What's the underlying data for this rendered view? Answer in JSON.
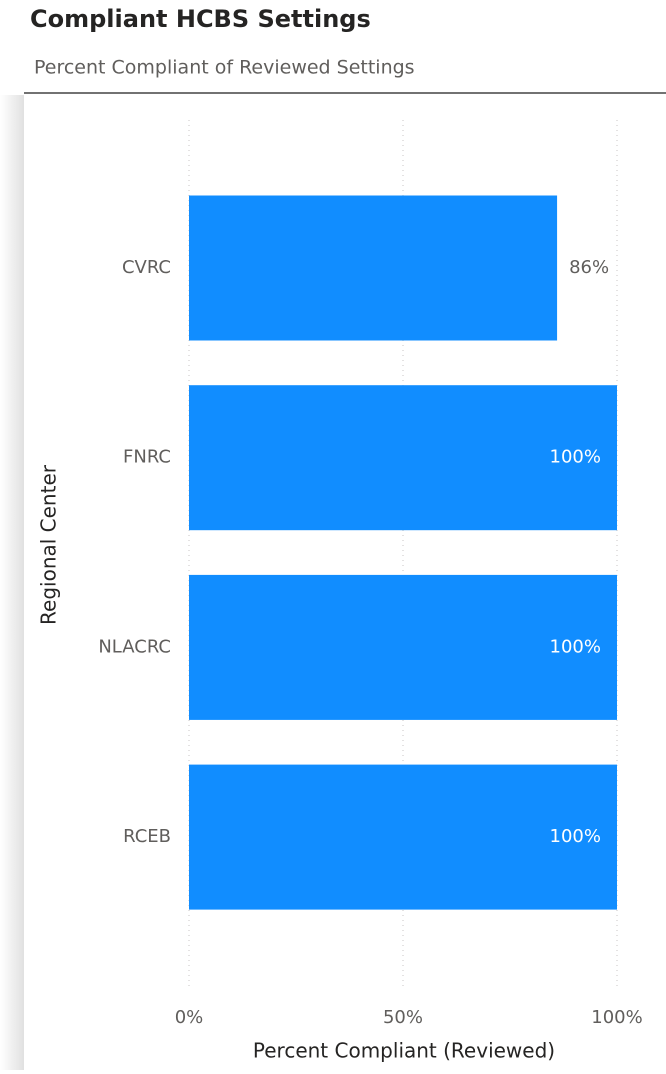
{
  "chart_data": {
    "type": "bar",
    "orientation": "horizontal",
    "title": "Compliant HCBS Settings",
    "subtitle": "Percent Compliant of Reviewed Settings",
    "x_label": "Percent Compliant (Reviewed)",
    "y_label": "Regional Center",
    "categories": [
      "CVRC",
      "FNRC",
      "NLACRC",
      "RCEB"
    ],
    "values": [
      86,
      100,
      100,
      100
    ],
    "value_labels": [
      "86%",
      "100%",
      "100%",
      "100%"
    ],
    "color": "#118dff",
    "xlim": [
      0,
      100
    ],
    "xticks": [
      {
        "value": 0,
        "label": "0%"
      },
      {
        "value": 50,
        "label": "50%"
      },
      {
        "value": 100,
        "label": "100%"
      }
    ],
    "grid": true
  }
}
